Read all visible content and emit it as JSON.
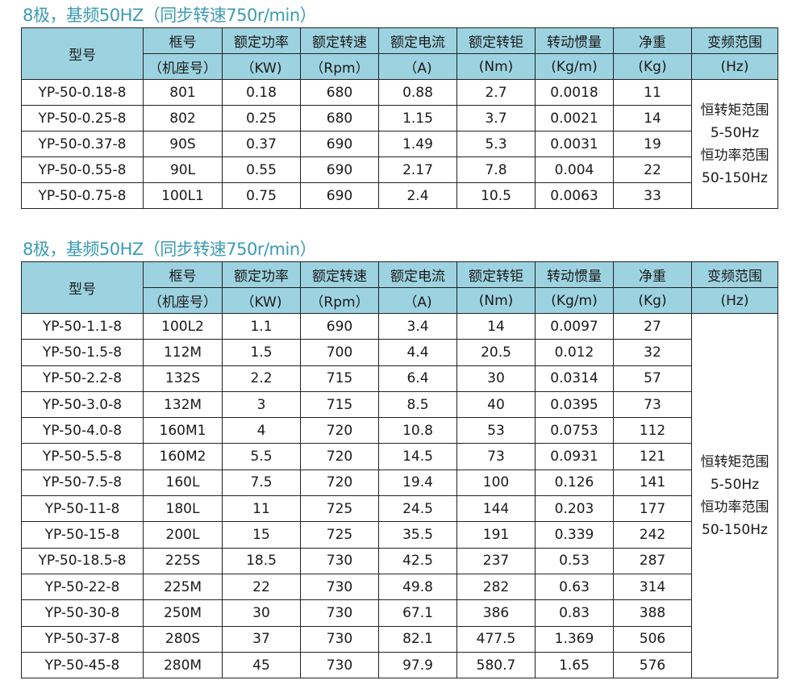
{
  "headers": [
    {
      "top": "型号",
      "bottom": ""
    },
    {
      "top": "框号",
      "bottom": "（机座号）"
    },
    {
      "top": "额定功率",
      "bottom": "（KW)"
    },
    {
      "top": "额定转速",
      "bottom": "（Rpm）"
    },
    {
      "top": "额定电流",
      "bottom": "（A)"
    },
    {
      "top": "额定转钜",
      "bottom": "(Nm)"
    },
    {
      "top": "转动惯量",
      "bottom": "(Kg/m)"
    },
    {
      "top": "净重",
      "bottom": "(Kg)"
    },
    {
      "top": "变频范围",
      "bottom": "(Hz)"
    }
  ],
  "tables": [
    {
      "title": "8极，基频50HZ（同步转速750r/min）",
      "range": [
        "恒转矩范围",
        "5-50Hz",
        "恒功率范围",
        "50-150Hz"
      ],
      "rows": [
        [
          "YP-50-0.18-8",
          "801",
          "0.18",
          "680",
          "0.88",
          "2.7",
          "0.0018",
          "11"
        ],
        [
          "YP-50-0.25-8",
          "802",
          "0.25",
          "680",
          "1.15",
          "3.7",
          "0.0021",
          "14"
        ],
        [
          "YP-50-0.37-8",
          "90S",
          "0.37",
          "690",
          "1.49",
          "5.3",
          "0.0031",
          "19"
        ],
        [
          "YP-50-0.55-8",
          "90L",
          "0.55",
          "690",
          "2.17",
          "7.8",
          "0.004",
          "22"
        ],
        [
          "YP-50-0.75-8",
          "100L1",
          "0.75",
          "690",
          "2.4",
          "10.5",
          "0.0063",
          "33"
        ]
      ]
    },
    {
      "title": "8极，基频50HZ（同步转速750r/min）",
      "range": [
        "恒转矩范围",
        "5-50Hz",
        "恒功率范围",
        "50-150Hz"
      ],
      "rows": [
        [
          "YP-50-1.1-8",
          "100L2",
          "1.1",
          "690",
          "3.4",
          "14",
          "0.0097",
          "27"
        ],
        [
          "YP-50-1.5-8",
          "112M",
          "1.5",
          "700",
          "4.4",
          "20.5",
          "0.012",
          "32"
        ],
        [
          "YP-50-2.2-8",
          "132S",
          "2.2",
          "715",
          "6.4",
          "30",
          "0.0314",
          "57"
        ],
        [
          "YP-50-3.0-8",
          "132M",
          "3",
          "715",
          "8.5",
          "40",
          "0.0395",
          "73"
        ],
        [
          "YP-50-4.0-8",
          "160M1",
          "4",
          "720",
          "10.8",
          "53",
          "0.0753",
          "112"
        ],
        [
          "YP-50-5.5-8",
          "160M2",
          "5.5",
          "720",
          "14.5",
          "73",
          "0.0931",
          "121"
        ],
        [
          "YP-50-7.5-8",
          "160L",
          "7.5",
          "720",
          "19.4",
          "100",
          "0.126",
          "141"
        ],
        [
          "YP-50-11-8",
          "180L",
          "11",
          "725",
          "24.5",
          "144",
          "0.203",
          "177"
        ],
        [
          "YP-50-15-8",
          "200L",
          "15",
          "725",
          "35.5",
          "191",
          "0.339",
          "242"
        ],
        [
          "YP-50-18.5-8",
          "225S",
          "18.5",
          "730",
          "42.5",
          "237",
          "0.53",
          "287"
        ],
        [
          "YP-50-22-8",
          "225M",
          "22",
          "730",
          "49.8",
          "282",
          "0.63",
          "314"
        ],
        [
          "YP-50-30-8",
          "250M",
          "30",
          "730",
          "67.1",
          "386",
          "0.83",
          "388"
        ],
        [
          "YP-50-37-8",
          "280S",
          "37",
          "730",
          "82.1",
          "477.5",
          "1.369",
          "506"
        ],
        [
          "YP-50-45-8",
          "280M",
          "45",
          "730",
          "97.9",
          "580.7",
          "1.65",
          "576"
        ]
      ]
    }
  ]
}
